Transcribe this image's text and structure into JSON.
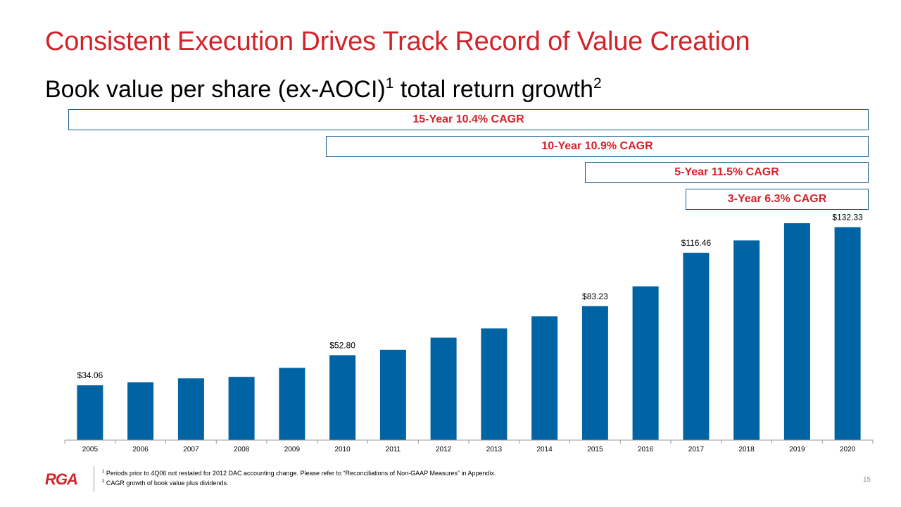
{
  "slide": {
    "title": "Consistent Execution Drives Track Record of Value Creation",
    "subtitle_main": "Book value per share (ex-AOCI)",
    "subtitle_sup1": "1",
    "subtitle_tail": " total return growth",
    "subtitle_sup2": "2",
    "page_number": "15"
  },
  "cagr": [
    {
      "label": "15-Year 10.4% CAGR"
    },
    {
      "label": "10-Year 10.9% CAGR"
    },
    {
      "label": "5-Year 11.5% CAGR"
    },
    {
      "label": "3-Year 6.3% CAGR"
    }
  ],
  "footer": {
    "logo": "RGA",
    "note1_sup": "1",
    "note1": "Periods prior to 4Q06 not restated for 2012 DAC accounting change. Please refer to “Reconciliations of Non-GAAP Measures” in Appendix.",
    "note2_sup": "2",
    "note2": "CAGR growth of book value plus dividends."
  },
  "colors": {
    "accent_red": "#d2232a",
    "bar_blue": "#0063a3",
    "box_border": "#1a5f8f"
  },
  "chart_data": {
    "type": "bar",
    "categories": [
      "2005",
      "2006",
      "2007",
      "2008",
      "2009",
      "2010",
      "2011",
      "2012",
      "2013",
      "2014",
      "2015",
      "2016",
      "2017",
      "2018",
      "2019",
      "2020"
    ],
    "values": [
      34.06,
      35.9,
      38.4,
      39.3,
      44.9,
      52.8,
      56.1,
      63.7,
      69.4,
      76.9,
      83.23,
      95.6,
      116.46,
      124.1,
      134.8,
      132.33
    ],
    "data_labels": {
      "0": "$34.06",
      "5": "$52.80",
      "10": "$83.23",
      "12": "$116.46",
      "15": "$132.33"
    },
    "title": "",
    "xlabel": "",
    "ylabel": "",
    "ylim": [
      0,
      140
    ],
    "grid": false,
    "legend": "none"
  }
}
